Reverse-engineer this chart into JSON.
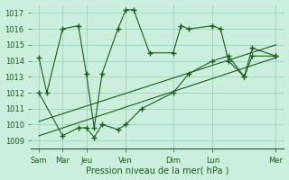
{
  "background_color": "#cceedd",
  "grid_color": "#99ccbb",
  "line_color": "#1a5c1a",
  "xlabel": "Pression niveau de la mer( hPa )",
  "ylim": [
    1008.5,
    1017.5
  ],
  "yticks": [
    1009,
    1010,
    1011,
    1012,
    1013,
    1014,
    1015,
    1016,
    1017
  ],
  "x_day_labels": [
    "Sam",
    "Mar",
    "Jeu",
    "Ven",
    "Dim",
    "Lun",
    "Mer"
  ],
  "x_day_positions": [
    0,
    3,
    6,
    11,
    17,
    22,
    30
  ],
  "xlim": [
    -1,
    31
  ],
  "series1_x": [
    0,
    1,
    3,
    5,
    6,
    7,
    8,
    10,
    11,
    12,
    14,
    17,
    18,
    19,
    22,
    23,
    24,
    26,
    27,
    30
  ],
  "series1_y": [
    1014.2,
    1012.0,
    1016.0,
    1016.2,
    1013.2,
    1009.8,
    1013.2,
    1016.0,
    1017.2,
    1017.2,
    1014.5,
    1014.5,
    1016.2,
    1016.0,
    1016.2,
    1016.0,
    1014.0,
    1013.0,
    1014.8,
    1014.3
  ],
  "series2_x": [
    0,
    3,
    5,
    6,
    7,
    8,
    10,
    11,
    13,
    17,
    19,
    22,
    24,
    26,
    27,
    30
  ],
  "series2_y": [
    1012.0,
    1009.3,
    1009.8,
    1009.8,
    1009.2,
    1010.0,
    1009.7,
    1010.0,
    1011.0,
    1012.0,
    1013.2,
    1014.0,
    1014.3,
    1013.0,
    1014.3,
    1014.3
  ],
  "trend1_x": [
    0,
    30
  ],
  "trend1_y": [
    1009.3,
    1014.2
  ],
  "trend2_x": [
    0,
    30
  ],
  "trend2_y": [
    1010.2,
    1015.0
  ]
}
